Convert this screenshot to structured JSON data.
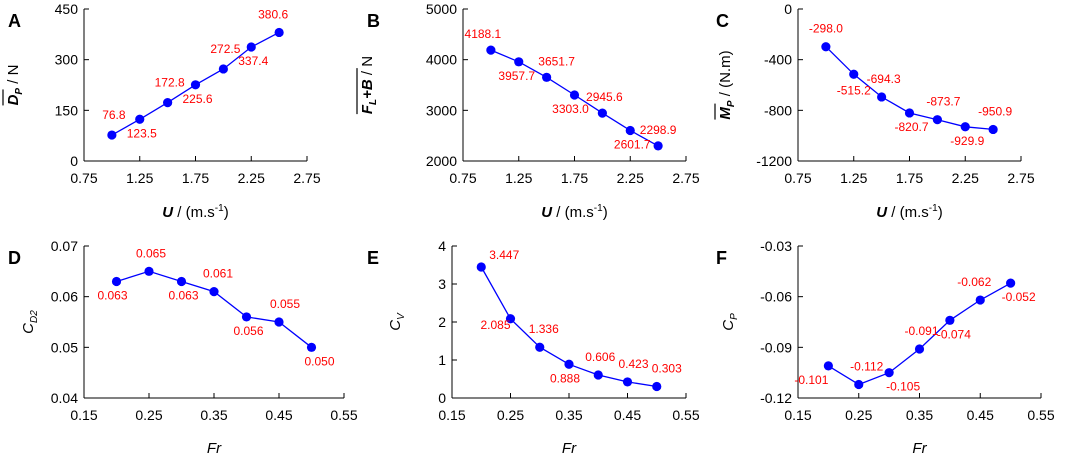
{
  "chart_data": [
    {
      "type": "line",
      "letter": "A",
      "x": [
        1.0,
        1.25,
        1.5,
        1.75,
        2.0,
        2.25,
        2.5
      ],
      "values": [
        76.8,
        123.5,
        172.8,
        225.6,
        272.5,
        337.4,
        380.6
      ],
      "point_labels": [
        "76.8",
        "123.5",
        "172.8",
        "225.6",
        "272.5",
        "337.4",
        "380.6"
      ],
      "xlim": [
        0.75,
        2.75
      ],
      "ylim": [
        0,
        450
      ],
      "xticks": [
        "0.75",
        "1.25",
        "1.75",
        "2.25",
        "2.75"
      ],
      "yticks": [
        "0",
        "150",
        "300",
        "450"
      ],
      "xlabel": {
        "main": "U",
        "rest": " / (m.s",
        "sup": "-1",
        "close": ")"
      },
      "ylabel": {
        "main": "D",
        "sub": "P",
        "rest": " / N"
      },
      "series_color": "#0000ff",
      "label_color": "#ff0000"
    },
    {
      "type": "line",
      "letter": "B",
      "x": [
        1.0,
        1.25,
        1.5,
        1.75,
        2.0,
        2.25,
        2.5
      ],
      "values": [
        4188.1,
        3957.7,
        3651.7,
        3303.0,
        2945.6,
        2601.7,
        2298.9
      ],
      "point_labels": [
        "4188.1",
        "3957.7",
        "3651.7",
        "3303.0",
        "2945.6",
        "2601.7",
        "2298.9"
      ],
      "xlim": [
        0.75,
        2.75
      ],
      "ylim": [
        2000,
        5000
      ],
      "xticks": [
        "0.75",
        "1.25",
        "1.75",
        "2.25",
        "2.75"
      ],
      "yticks": [
        "2000",
        "3000",
        "4000",
        "5000"
      ],
      "xlabel": {
        "main": "U",
        "rest": " / (m.s",
        "sup": "-1",
        "close": ")"
      },
      "ylabel": {
        "main": "F",
        "sub": "L",
        "main2": "+B",
        "rest": " / N"
      },
      "series_color": "#0000ff",
      "label_color": "#ff0000"
    },
    {
      "type": "line",
      "letter": "C",
      "x": [
        1.0,
        1.25,
        1.5,
        1.75,
        2.0,
        2.25,
        2.5
      ],
      "values": [
        -298.0,
        -515.2,
        -694.3,
        -820.7,
        -873.7,
        -929.9,
        -950.9
      ],
      "point_labels": [
        "-298.0",
        "-515.2",
        "-694.3",
        "-820.7",
        "-873.7",
        "-929.9",
        "-950.9"
      ],
      "xlim": [
        0.75,
        2.75
      ],
      "ylim": [
        -1200,
        0
      ],
      "xticks": [
        "0.75",
        "1.25",
        "1.75",
        "2.25",
        "2.75"
      ],
      "yticks": [
        "-1200",
        "-800",
        "-400",
        "0"
      ],
      "xlabel": {
        "main": "U",
        "rest": " / (m.s",
        "sup": "-1",
        "close": ")"
      },
      "ylabel": {
        "main": "M",
        "sub": "P",
        "rest": " / (N.m)"
      },
      "series_color": "#0000ff",
      "label_color": "#ff0000"
    },
    {
      "type": "line",
      "letter": "D",
      "x": [
        0.2,
        0.25,
        0.3,
        0.35,
        0.4,
        0.45,
        0.5
      ],
      "values": [
        0.063,
        0.065,
        0.063,
        0.061,
        0.056,
        0.055,
        0.05
      ],
      "point_labels": [
        "0.063",
        "0.065",
        "0.063",
        "0.061",
        "0.056",
        "0.055",
        "0.050"
      ],
      "xlim": [
        0.15,
        0.55
      ],
      "ylim": [
        0.04,
        0.07
      ],
      "xticks": [
        "0.15",
        "0.25",
        "0.35",
        "0.45",
        "0.55"
      ],
      "yticks": [
        "0.04",
        "0.05",
        "0.06",
        "0.07"
      ],
      "xlabel": {
        "main": "Fr"
      },
      "ylabel": {
        "main": "C",
        "sub": "D2"
      },
      "series_color": "#0000ff",
      "label_color": "#ff0000"
    },
    {
      "type": "line",
      "letter": "E",
      "x": [
        0.2,
        0.25,
        0.3,
        0.35,
        0.4,
        0.45,
        0.5
      ],
      "values": [
        3.447,
        2.085,
        1.336,
        0.888,
        0.606,
        0.423,
        0.303
      ],
      "point_labels": [
        "3.447",
        "2.085",
        "1.336",
        "0.888",
        "0.606",
        "0.423",
        "0.303"
      ],
      "xlim": [
        0.15,
        0.55
      ],
      "ylim": [
        0,
        4
      ],
      "xticks": [
        "0.15",
        "0.25",
        "0.35",
        "0.45",
        "0.55"
      ],
      "yticks": [
        "0",
        "1",
        "2",
        "3",
        "4"
      ],
      "xlabel": {
        "main": "Fr"
      },
      "ylabel": {
        "main": "C",
        "sub": "V"
      },
      "series_color": "#0000ff",
      "label_color": "#ff0000"
    },
    {
      "type": "line",
      "letter": "F",
      "x": [
        0.2,
        0.25,
        0.3,
        0.35,
        0.4,
        0.45,
        0.5
      ],
      "values": [
        -0.101,
        -0.112,
        -0.105,
        -0.091,
        -0.074,
        -0.062,
        -0.052
      ],
      "point_labels": [
        "-0.101",
        "-0.112",
        "-0.105",
        "-0.091",
        "-0.074",
        "-0.062",
        "-0.052"
      ],
      "xlim": [
        0.15,
        0.55
      ],
      "ylim": [
        -0.12,
        -0.03
      ],
      "xticks": [
        "0.15",
        "0.25",
        "0.35",
        "0.45",
        "0.55"
      ],
      "yticks": [
        "-0.12",
        "-0.09",
        "-0.06",
        "-0.03"
      ],
      "xlabel": {
        "main": "Fr"
      },
      "ylabel": {
        "main": "C",
        "sub": "P"
      },
      "series_color": "#0000ff",
      "label_color": "#ff0000"
    }
  ]
}
